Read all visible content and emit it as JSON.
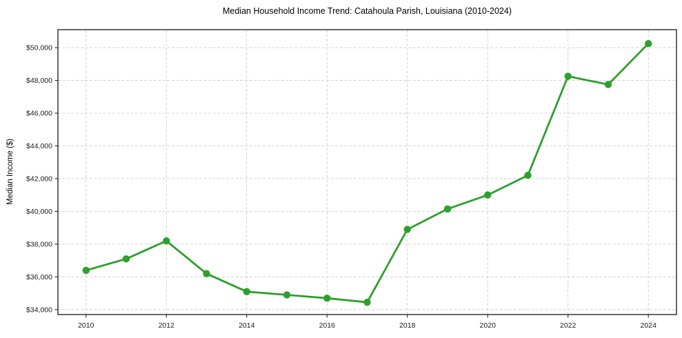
{
  "chart_data": {
    "type": "line",
    "title": "Median Household Income Trend: Catahoula Parish, Louisiana (2010-2024)",
    "xlabel": "",
    "ylabel": "Median Income ($)",
    "x": [
      2010,
      2011,
      2012,
      2013,
      2014,
      2015,
      2016,
      2017,
      2018,
      2019,
      2020,
      2021,
      2022,
      2023,
      2024
    ],
    "values": [
      36400,
      37100,
      38200,
      36200,
      35100,
      34900,
      34700,
      34450,
      38900,
      40150,
      41000,
      42200,
      48250,
      47750,
      50250
    ],
    "series_name": "Median Household Income",
    "xlim": [
      2009.3,
      2024.7
    ],
    "ylim": [
      33700,
      51100
    ],
    "xticks": [
      2010,
      2012,
      2014,
      2016,
      2018,
      2020,
      2022,
      2024
    ],
    "xtick_labels": [
      "2010",
      "2012",
      "2014",
      "2016",
      "2018",
      "2020",
      "2022",
      "2024"
    ],
    "yticks": [
      34000,
      36000,
      38000,
      40000,
      42000,
      44000,
      46000,
      48000,
      50000
    ],
    "ytick_labels": [
      "$34,000",
      "$36,000",
      "$38,000",
      "$40,000",
      "$42,000",
      "$44,000",
      "$46,000",
      "$48,000",
      "$50,000"
    ],
    "grid": true,
    "grid_style": "dashed",
    "legend": null,
    "colors": {
      "line": "#2ca02c",
      "marker": "#2ca02c",
      "grid": "#cccccc",
      "spine": "#262626",
      "tick_text": "#1a1a1a"
    }
  }
}
